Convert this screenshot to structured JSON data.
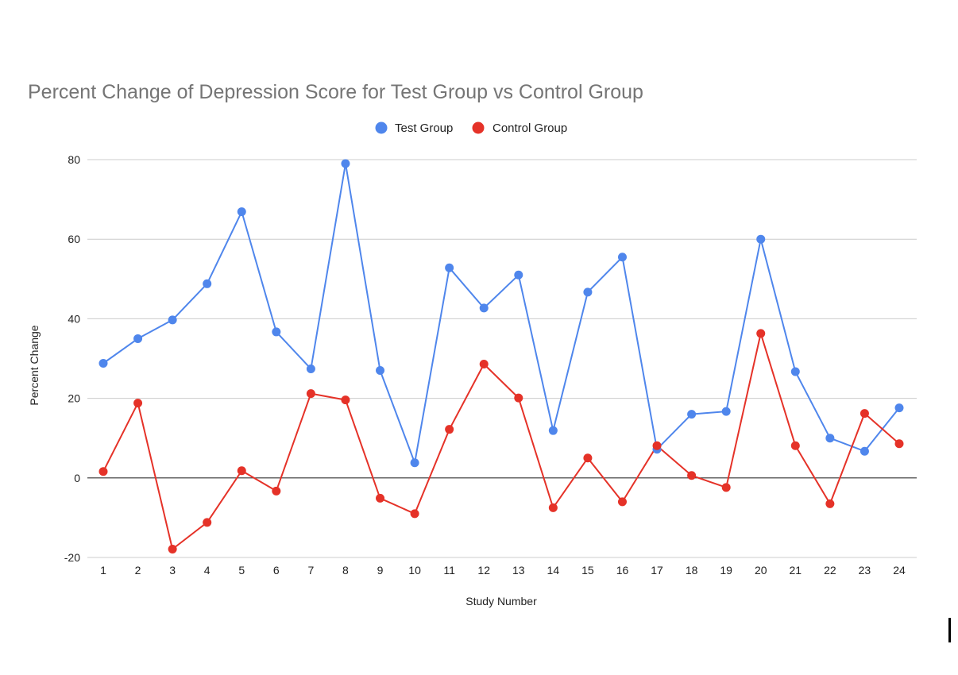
{
  "chart_data": {
    "type": "line",
    "title": "Percent Change of Depression Score for Test Group vs Control Group",
    "xlabel": "Study Number",
    "ylabel": "Percent Change",
    "categories": [
      "1",
      "2",
      "3",
      "4",
      "5",
      "6",
      "7",
      "8",
      "9",
      "10",
      "11",
      "12",
      "13",
      "14",
      "15",
      "16",
      "17",
      "18",
      "19",
      "20",
      "21",
      "22",
      "23",
      "24"
    ],
    "ylim": [
      -20,
      80
    ],
    "yticks": [
      -20,
      0,
      20,
      40,
      60,
      80
    ],
    "grid": true,
    "legend_position": "top-center",
    "series": [
      {
        "name": "Test Group",
        "color": "#4f86ec",
        "values": [
          28.8,
          35.0,
          39.7,
          48.8,
          66.9,
          36.7,
          27.4,
          79.0,
          27.0,
          3.8,
          52.8,
          42.7,
          51.0,
          11.9,
          46.7,
          55.5,
          7.2,
          16.0,
          16.7,
          60.0,
          26.7,
          10.0,
          6.7,
          17.6
        ]
      },
      {
        "name": "Control Group",
        "color": "#e53228",
        "values": [
          1.6,
          18.8,
          -17.9,
          -11.2,
          1.8,
          -3.3,
          21.2,
          19.6,
          -5.1,
          -9.0,
          12.2,
          28.6,
          20.1,
          -7.5,
          5.0,
          -6.0,
          8.1,
          0.6,
          -2.4,
          36.3,
          8.1,
          -6.5,
          16.2,
          8.6
        ]
      }
    ]
  }
}
